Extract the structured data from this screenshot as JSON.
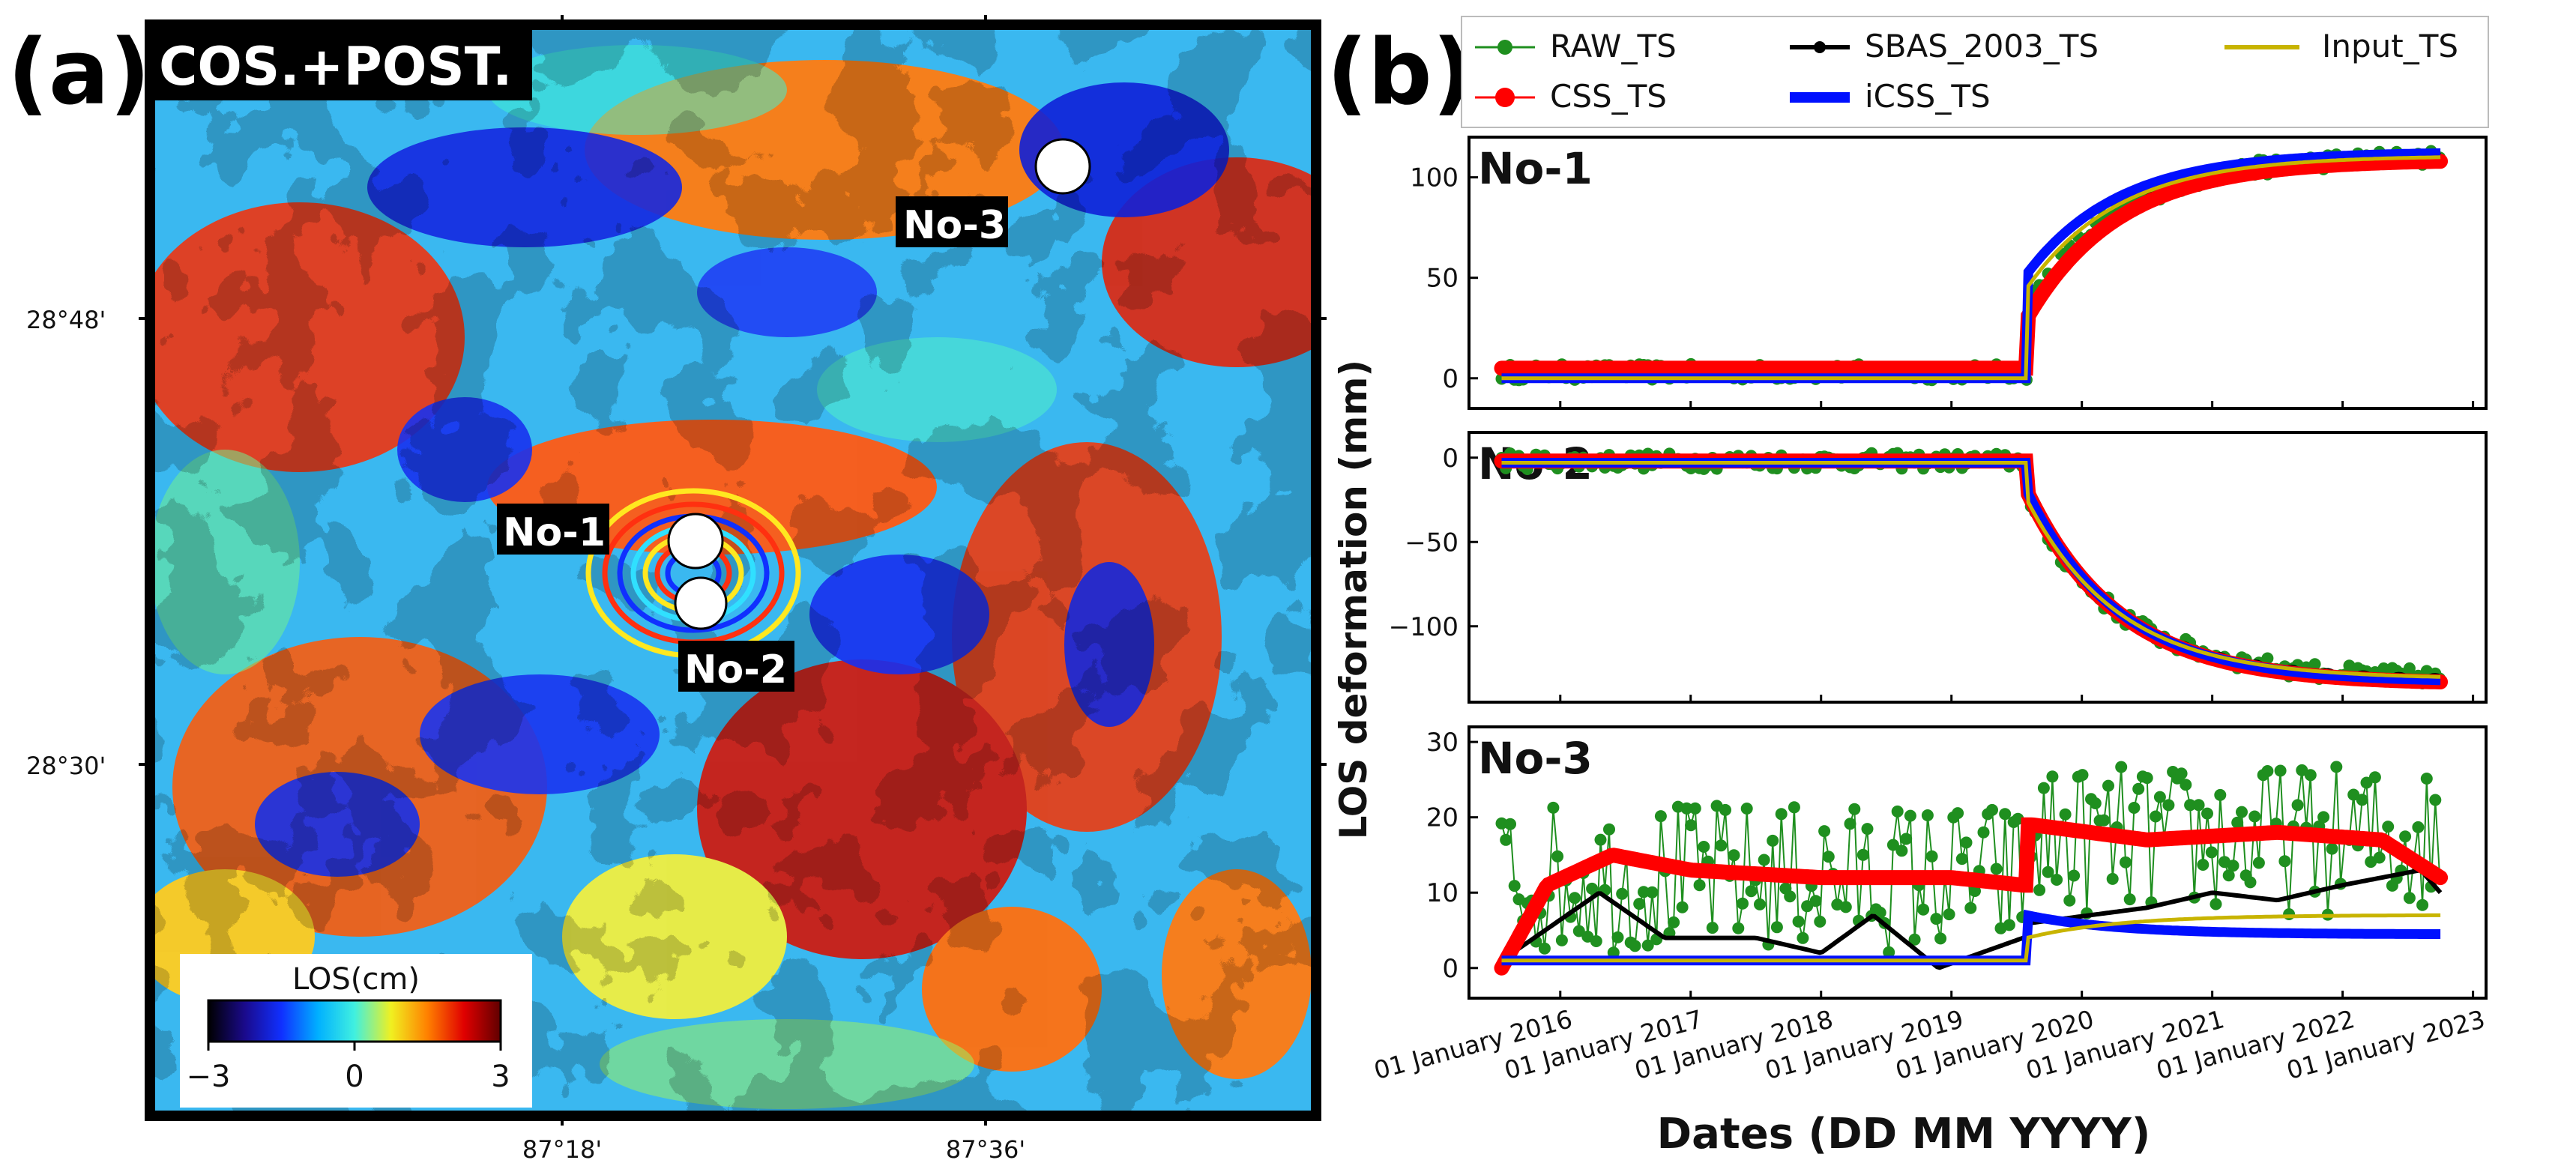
{
  "panel_a": {
    "label": "(a)",
    "title": "COS.+POST.",
    "points": [
      {
        "name": "No-1"
      },
      {
        "name": "No-2"
      },
      {
        "name": "No-3"
      }
    ],
    "lat_ticks": [
      "28°48'",
      "28°30'"
    ],
    "lon_ticks": [
      "87°18'",
      "87°36'"
    ],
    "colorbar": {
      "title": "LOS(cm)",
      "ticks": [
        "−3",
        "0",
        "3"
      ],
      "colors": [
        "#000000",
        "#1a0a8c",
        "#1030ff",
        "#00b0ff",
        "#40f0e0",
        "#f0f020",
        "#ff8000",
        "#e00000",
        "#600000"
      ]
    }
  },
  "panel_b": {
    "label": "(b)",
    "ylabel": "LOS deformation (mm)",
    "xlabel": "Dates (DD MM YYYY)",
    "legend": [
      {
        "name": "RAW_TS",
        "color": "#1f8f1f"
      },
      {
        "name": "SBAS_2003_TS",
        "color": "#000000"
      },
      {
        "name": "Input_TS",
        "color": "#c8b400"
      },
      {
        "name": "CSS_TS",
        "color": "#ff0000"
      },
      {
        "name": "iCSS_TS",
        "color": "#0010ff"
      }
    ]
  },
  "chart_data": [
    {
      "type": "line",
      "title": "No-1",
      "ylabel": "LOS deformation (mm)",
      "x_ticks": [
        "01 January 2016",
        "01 January 2017",
        "01 January 2018",
        "01 January 2019",
        "01 January 2020",
        "01 January 2021",
        "01 January 2022",
        "01 January 2023"
      ],
      "xlim": [
        2015.3,
        2023.1
      ],
      "ylim": [
        -15,
        120
      ],
      "y_ticks": [
        0,
        50,
        100
      ],
      "event_year": 2019.58,
      "series": [
        {
          "name": "Input_TS",
          "pre": 0,
          "jump": 45,
          "post_end": 110
        },
        {
          "name": "iCSS_TS",
          "pre": 0,
          "jump": 52,
          "post_end": 112
        },
        {
          "name": "CSS_TS",
          "pre": 5,
          "jump": 30,
          "post_end": 108
        },
        {
          "name": "SBAS_2003_TS",
          "pre": 2,
          "jump": 30,
          "post_end": 110
        },
        {
          "name": "RAW_TS",
          "pre": 3,
          "jump": 35,
          "post_end": 110
        }
      ]
    },
    {
      "type": "line",
      "title": "No-2",
      "ylabel": "LOS deformation (mm)",
      "x_ticks": [
        "01 January 2016",
        "01 January 2017",
        "01 January 2018",
        "01 January 2019",
        "01 January 2020",
        "01 January 2021",
        "01 January 2022",
        "01 January 2023"
      ],
      "xlim": [
        2015.3,
        2023.1
      ],
      "ylim": [
        -145,
        15
      ],
      "y_ticks": [
        0,
        -50,
        -100
      ],
      "event_year": 2019.58,
      "series": [
        {
          "name": "Input_TS",
          "pre": -3,
          "jump": -25,
          "post_end": -130
        },
        {
          "name": "iCSS_TS",
          "pre": -3,
          "jump": -20,
          "post_end": -132
        },
        {
          "name": "CSS_TS",
          "pre": -2,
          "jump": -20,
          "post_end": -133
        },
        {
          "name": "SBAS_2003_TS",
          "pre": -3,
          "jump": -20,
          "post_end": -131
        },
        {
          "name": "RAW_TS",
          "pre": -2,
          "jump": -25,
          "post_end": -130
        }
      ]
    },
    {
      "type": "line",
      "title": "No-3",
      "xlabel": "Dates (DD MM YYYY)",
      "x_ticks": [
        "01 January 2016",
        "01 January 2017",
        "01 January 2018",
        "01 January 2019",
        "01 January 2020",
        "01 January 2021",
        "01 January 2022",
        "01 January 2023"
      ],
      "xlim": [
        2015.3,
        2023.1
      ],
      "ylim": [
        -4,
        32
      ],
      "y_ticks": [
        0,
        10,
        20,
        30
      ],
      "event_year": 2019.58,
      "series": [
        {
          "name": "Input_TS",
          "pre": 1,
          "jump": 4,
          "post_end": 7
        },
        {
          "name": "iCSS_TS",
          "pre": 1,
          "jump": 7,
          "post_end": 4.5
        },
        {
          "name": "CSS_TS",
          "pre_curve": [
            [
              2015.55,
              0
            ],
            [
              2015.9,
              11
            ],
            [
              2016.4,
              15
            ],
            [
              2017.0,
              13
            ],
            [
              2018.0,
              12
            ],
            [
              2019.0,
              12
            ],
            [
              2019.55,
              11
            ]
          ],
          "post_curve": [
            [
              2019.62,
              19
            ],
            [
              2020.5,
              17
            ],
            [
              2021.5,
              18
            ],
            [
              2022.3,
              17
            ],
            [
              2022.75,
              12
            ]
          ]
        },
        {
          "name": "SBAS_2003_TS",
          "pre_curve": [
            [
              2015.55,
              1
            ],
            [
              2016.3,
              10
            ],
            [
              2016.8,
              4
            ],
            [
              2017.5,
              4
            ],
            [
              2018.0,
              2
            ],
            [
              2018.4,
              7
            ],
            [
              2018.9,
              0
            ],
            [
              2019.55,
              4
            ]
          ],
          "post_curve": [
            [
              2019.62,
              6
            ],
            [
              2020.5,
              8
            ],
            [
              2021.0,
              10
            ],
            [
              2021.5,
              9
            ],
            [
              2022.0,
              11
            ],
            [
              2022.6,
              13
            ],
            [
              2022.75,
              10
            ]
          ]
        },
        {
          "name": "RAW_TS",
          "pre_mean": 12,
          "post_mean": 17,
          "spread": 10
        }
      ]
    }
  ]
}
